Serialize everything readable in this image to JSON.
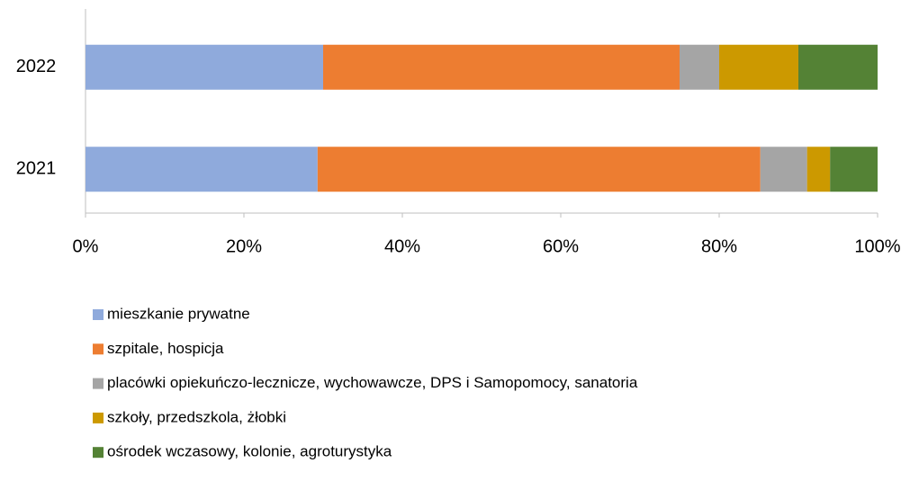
{
  "chart_data": {
    "type": "stacked-barh",
    "categories": [
      "2022",
      "2021"
    ],
    "series": [
      {
        "name": "mieszkanie prywatne",
        "color": "#8faadc",
        "values": [
          30,
          29.3
        ]
      },
      {
        "name": "szpitale, hospicja",
        "color": "#ed7d31",
        "values": [
          45,
          55.9
        ]
      },
      {
        "name": "placówki opiekuńczo-lecznicze, wychowawcze, DPS i Samopomocy, sanatoria",
        "color": "#a5a5a5",
        "values": [
          5,
          5.9
        ]
      },
      {
        "name": "szkoły, przedszkola, żłobki",
        "color": "#cc9900",
        "values": [
          10,
          2.9
        ]
      },
      {
        "name": "ośrodek wczasowy, kolonie, agroturystyka",
        "color": "#548235",
        "values": [
          10,
          6.0
        ]
      }
    ],
    "xlim": [
      0,
      100
    ],
    "xticks": [
      {
        "value": 0,
        "label": "0%"
      },
      {
        "value": 20,
        "label": "20%"
      },
      {
        "value": 40,
        "label": "40%"
      },
      {
        "value": 60,
        "label": "60%"
      },
      {
        "value": 80,
        "label": "80%"
      },
      {
        "value": 100,
        "label": "100%"
      }
    ],
    "legend": "bottom"
  }
}
